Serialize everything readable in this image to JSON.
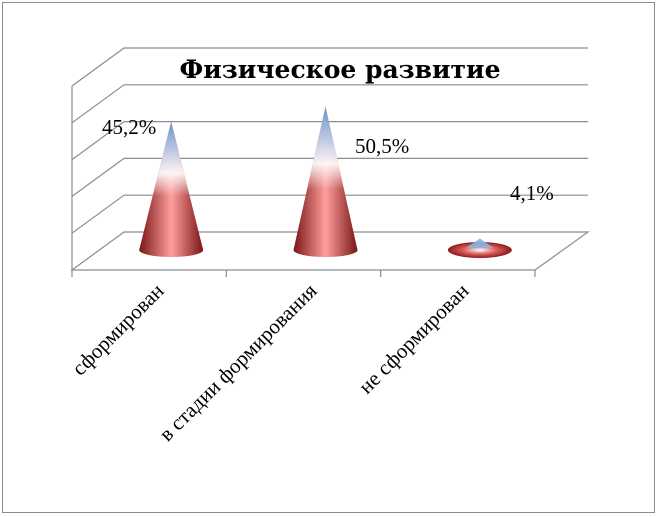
{
  "chart_data": {
    "type": "bar",
    "shape": "cone-3d",
    "title": "Физическое развитие",
    "categories": [
      "сформирован",
      "в стадии формирования",
      "не сформирован"
    ],
    "values": [
      45.2,
      50.5,
      4.1
    ],
    "data_labels": [
      "45,2%",
      "50,5%",
      "4,1%"
    ],
    "unit": "%",
    "ylim": [
      0,
      50
    ],
    "grid": true,
    "legend": "none",
    "colors": {
      "cone_base": "#b22a2a",
      "cone_mid": "#e88080",
      "cone_top": "#9cc3e6",
      "grid": "#8c8c8c"
    }
  }
}
